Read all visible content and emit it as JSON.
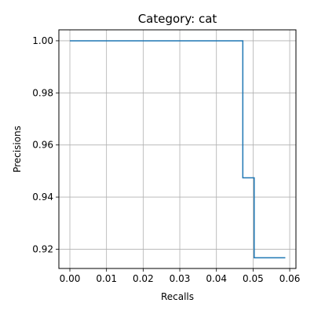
{
  "chart_data": {
    "type": "line",
    "step": "post",
    "title": "Category: cat",
    "xlabel": "Recalls",
    "ylabel": "Precisions",
    "xlim": [
      -0.003,
      0.0617
    ],
    "ylim": [
      0.9126,
      1.0042
    ],
    "grid": true,
    "xticks": [
      0.0,
      0.01,
      0.02,
      0.03,
      0.04,
      0.05,
      0.06
    ],
    "xtick_labels": [
      "0.00",
      "0.01",
      "0.02",
      "0.03",
      "0.04",
      "0.05",
      "0.06"
    ],
    "yticks": [
      0.92,
      0.94,
      0.96,
      0.98,
      1.0
    ],
    "ytick_labels": [
      "0.92",
      "0.94",
      "0.96",
      "0.98",
      "1.00"
    ],
    "series": [
      {
        "color": "#1f77b4",
        "x": [
          0.0,
          0.0472,
          0.0472,
          0.0503,
          0.0503,
          0.0588
        ],
        "y": [
          1.0,
          1.0,
          0.9474,
          0.9474,
          0.9167,
          0.9167
        ]
      }
    ]
  }
}
